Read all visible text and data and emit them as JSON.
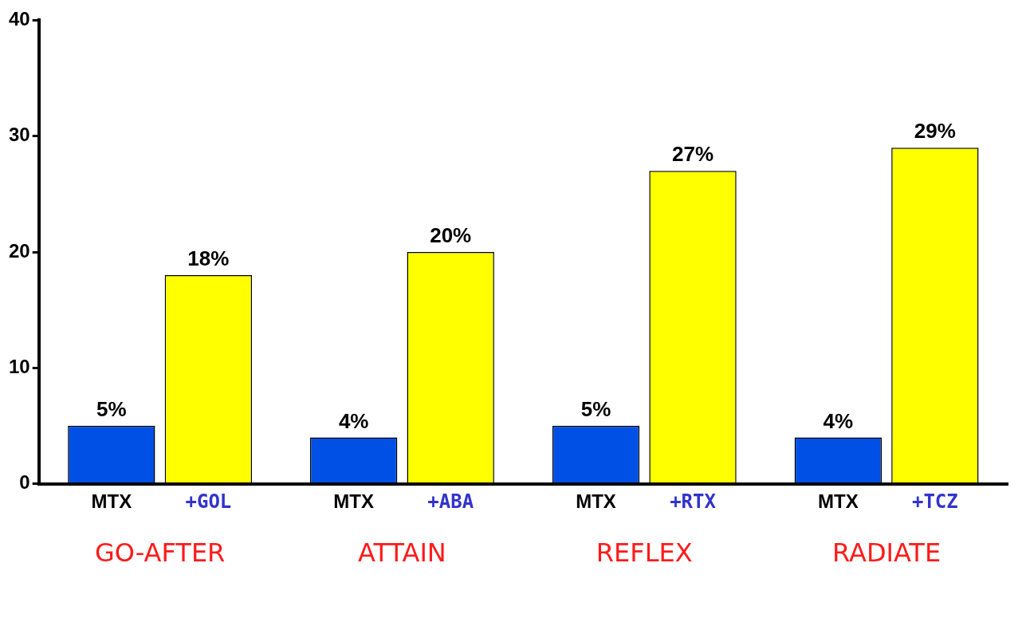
{
  "chart_data": {
    "type": "bar",
    "categories": [
      "GO-AFTER",
      "ATTAIN",
      "REFLEX",
      "RADIATE"
    ],
    "series": [
      {
        "name": "MTX",
        "color": "#0050e6",
        "values": [
          5,
          4,
          5,
          4
        ],
        "value_labels": [
          "5%",
          "4%",
          "5%",
          "4%"
        ]
      },
      {
        "color": "#ffff00",
        "values": [
          18,
          20,
          27,
          29
        ],
        "value_labels": [
          "18%",
          "20%",
          "27%",
          "29%"
        ]
      }
    ],
    "annotations": [
      "+GOL",
      "+ABA",
      "+RTX",
      "+TCZ"
    ],
    "ylim": [
      0,
      40
    ],
    "yticks": [
      0,
      10,
      20,
      30,
      40
    ],
    "legend": false
  }
}
